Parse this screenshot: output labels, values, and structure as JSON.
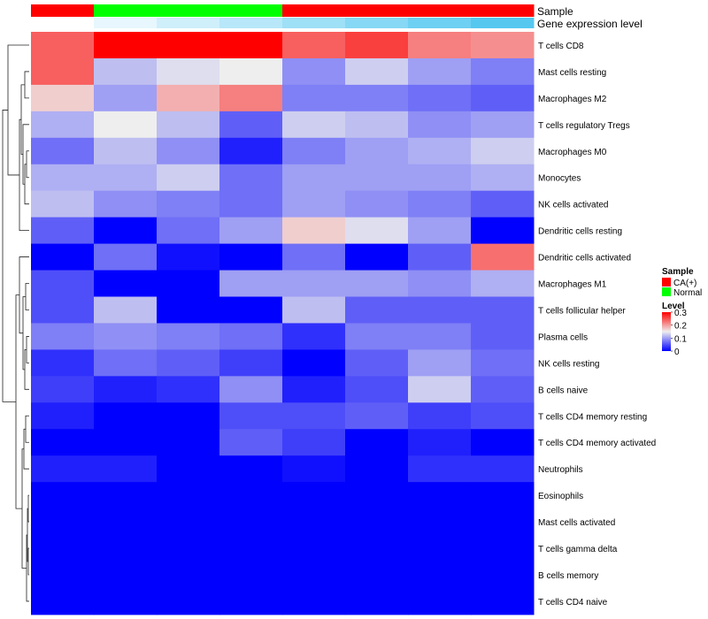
{
  "chart_data": {
    "type": "heatmap",
    "title": "",
    "annotation_tracks": [
      {
        "name": "Sample",
        "values": [
          "CA(+)",
          "Normal",
          "Normal",
          "Normal",
          "CA(+)",
          "CA(+)",
          "CA(+)",
          "CA(+)"
        ]
      },
      {
        "name": "Gene expression level",
        "values": [
          0.0,
          0.1,
          0.2,
          0.3,
          0.4,
          0.5,
          0.6,
          0.7
        ]
      }
    ],
    "rows": [
      "T cells CD8",
      "Mast cells resting",
      "Macrophages M2",
      "T cells regulatory  Tregs",
      "Macrophages M0",
      "Monocytes",
      "NK cells activated",
      "Dendritic cells resting",
      "Dendritic cells activated",
      "Macrophages M1",
      "T cells follicular helper",
      "Plasma cells",
      "NK cells resting",
      "B cells naive",
      "T cells CD4 memory resting",
      "T cells CD4 memory activated",
      "Neutrophils",
      "Eosinophils",
      "Mast cells activated",
      "T cells gamma delta",
      "B cells memory",
      "T cells CD4 naive"
    ],
    "values": [
      [
        0.24,
        0.3,
        0.3,
        0.3,
        0.24,
        0.26,
        0.22,
        0.21
      ],
      [
        0.24,
        0.12,
        0.14,
        0.15,
        0.09,
        0.13,
        0.1,
        0.08
      ],
      [
        0.17,
        0.1,
        0.19,
        0.22,
        0.08,
        0.08,
        0.07,
        0.06
      ],
      [
        0.11,
        0.15,
        0.12,
        0.06,
        0.13,
        0.12,
        0.09,
        0.1
      ],
      [
        0.07,
        0.12,
        0.09,
        0.02,
        0.08,
        0.1,
        0.11,
        0.13
      ],
      [
        0.11,
        0.11,
        0.13,
        0.07,
        0.1,
        0.1,
        0.1,
        0.11
      ],
      [
        0.12,
        0.09,
        0.08,
        0.07,
        0.1,
        0.09,
        0.08,
        0.06
      ],
      [
        0.06,
        0.0,
        0.07,
        0.1,
        0.17,
        0.14,
        0.1,
        0.0
      ],
      [
        0.0,
        0.07,
        0.01,
        0.0,
        0.07,
        0.0,
        0.06,
        0.23
      ],
      [
        0.05,
        0.0,
        0.0,
        0.1,
        0.1,
        0.1,
        0.09,
        0.11
      ],
      [
        0.05,
        0.12,
        0.0,
        0.0,
        0.12,
        0.06,
        0.06,
        0.06
      ],
      [
        0.08,
        0.09,
        0.08,
        0.07,
        0.03,
        0.08,
        0.08,
        0.06
      ],
      [
        0.03,
        0.07,
        0.06,
        0.04,
        0.0,
        0.06,
        0.1,
        0.07
      ],
      [
        0.04,
        0.02,
        0.03,
        0.09,
        0.02,
        0.05,
        0.13,
        0.06
      ],
      [
        0.02,
        0.0,
        0.0,
        0.05,
        0.05,
        0.06,
        0.04,
        0.05
      ],
      [
        0.0,
        0.0,
        0.0,
        0.06,
        0.04,
        0.0,
        0.02,
        0.0
      ],
      [
        0.02,
        0.02,
        0.0,
        0.0,
        0.01,
        0.0,
        0.03,
        0.03
      ],
      [
        0.0,
        0.0,
        0.0,
        0.0,
        0.0,
        0.0,
        0.0,
        0.0
      ],
      [
        0.0,
        0.0,
        0.0,
        0.0,
        0.0,
        0.0,
        0.0,
        0.0
      ],
      [
        0.0,
        0.0,
        0.0,
        0.0,
        0.0,
        0.0,
        0.0,
        0.0
      ],
      [
        0.0,
        0.0,
        0.0,
        0.0,
        0.0,
        0.0,
        0.0,
        0.0
      ],
      [
        0.0,
        0.0,
        0.0,
        0.0,
        0.0,
        0.0,
        0.0,
        0.0
      ]
    ],
    "color_scale": {
      "name": "Level",
      "stops": [
        {
          "value": 0.0,
          "color": "#0000ff"
        },
        {
          "value": 0.15,
          "color": "#eeeeee"
        },
        {
          "value": 0.3,
          "color": "#ff0000"
        }
      ],
      "ticks": [
        "0.3",
        "0.2",
        "0.1",
        "0"
      ],
      "tick_values": [
        0.3,
        0.2,
        0.1,
        0.0
      ]
    },
    "legend": {
      "sample_title": "Sample",
      "sample_items": [
        {
          "label": "CA(+)",
          "color": "#ff0000"
        },
        {
          "label": "Normal",
          "color": "#00ff00"
        }
      ],
      "gene_level_color_low": "#ffffff",
      "gene_level_color_high": "#56c8f0",
      "gene_level_range": [
        0.0,
        0.7
      ],
      "position": "right"
    },
    "row_dendrogram": true
  }
}
